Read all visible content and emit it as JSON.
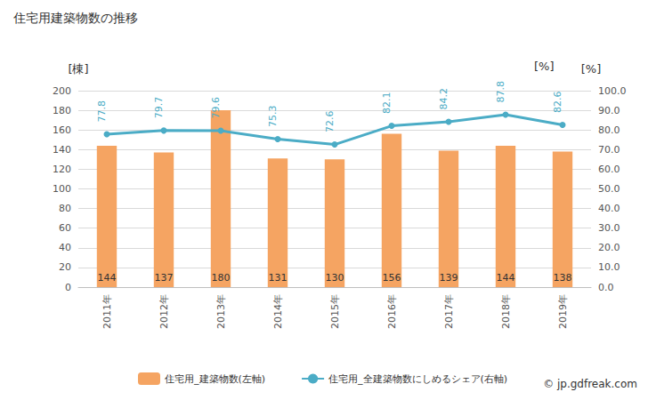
{
  "chart_data": {
    "type": "bar",
    "title": "住宅用建築物数の推移",
    "categories": [
      "2011年",
      "2012年",
      "2013年",
      "2014年",
      "2015年",
      "2016年",
      "2017年",
      "2018年",
      "2019年"
    ],
    "series": [
      {
        "name": "住宅用_建築物数(左軸)",
        "type": "bar",
        "color": "#f5a462",
        "values": [
          144,
          137,
          180,
          131,
          130,
          156,
          139,
          144,
          138
        ]
      },
      {
        "name": "住宅用_全建築物数にしめるシェア(右軸)",
        "type": "line",
        "axis": "y2",
        "color": "#4bacc6",
        "marker": "circle",
        "values": [
          77.8,
          79.7,
          79.6,
          75.3,
          72.6,
          82.1,
          84.2,
          87.8,
          82.6
        ]
      }
    ],
    "y_label": "[棟]",
    "y2_label": "[%]",
    "ylim": [
      0,
      200
    ],
    "yticks": [
      0,
      20,
      40,
      60,
      80,
      100,
      120,
      140,
      160,
      180,
      200
    ],
    "y2lim": [
      0,
      100
    ],
    "y2ticks": [
      {
        "value": 0,
        "label": "0.0"
      },
      {
        "value": 10,
        "label": "10.0"
      },
      {
        "value": 20,
        "label": "20.0"
      },
      {
        "value": 30,
        "label": "30.0"
      },
      {
        "value": 40,
        "label": "40.0"
      },
      {
        "value": 50,
        "label": "50.0"
      },
      {
        "value": 60,
        "label": "60.0"
      },
      {
        "value": 70,
        "label": "70.0"
      },
      {
        "value": 80,
        "label": "80.0"
      },
      {
        "value": 90,
        "label": "90.0"
      },
      {
        "value": 100,
        "label": "100.0"
      }
    ],
    "annotations": [
      "[%]",
      "© jp.gdfreak.com"
    ],
    "grid": true,
    "legend": "bottom",
    "data_labels": true
  }
}
